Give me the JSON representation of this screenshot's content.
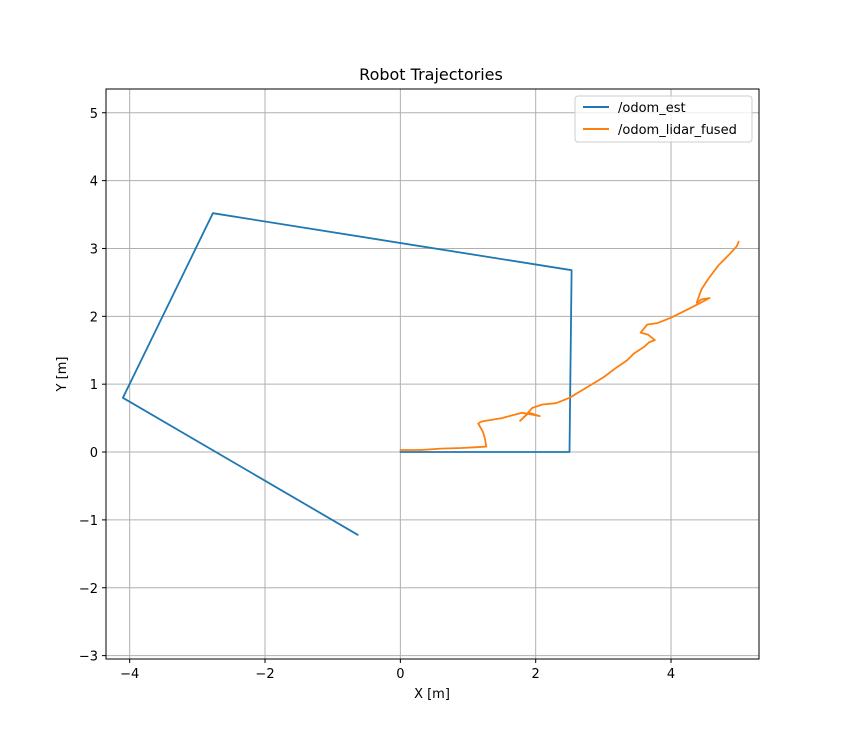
{
  "chart_data": {
    "type": "line",
    "title": "Robot Trajectories",
    "xlabel": "X [m]",
    "ylabel": "Y [m]",
    "xlim": [
      -4.35,
      5.3
    ],
    "ylim": [
      -3.05,
      5.35
    ],
    "xticks": [
      -4,
      -2,
      0,
      2,
      4
    ],
    "yticks": [
      -3,
      -2,
      -1,
      0,
      1,
      2,
      3,
      4,
      5
    ],
    "xtick_labels": [
      "−4",
      "−2",
      "0",
      "2",
      "4"
    ],
    "ytick_labels": [
      "−3",
      "−2",
      "−1",
      "0",
      "1",
      "2",
      "3",
      "4",
      "5"
    ],
    "grid": true,
    "legend_position": "top-right",
    "series": [
      {
        "name": "/odom_est",
        "color": "#1f77b4",
        "x": [
          0.0,
          2.5,
          2.53,
          -2.77,
          -4.1,
          -0.63
        ],
        "y": [
          0.0,
          0.0,
          2.68,
          3.52,
          0.8,
          -1.22
        ]
      },
      {
        "name": "/odom_lidar_fused",
        "color": "#ff7f0e",
        "x": [
          0.0,
          0.3,
          0.6,
          0.9,
          1.1,
          1.27,
          1.25,
          1.22,
          1.15,
          1.2,
          1.5,
          1.8,
          2.06,
          1.9,
          1.77,
          1.83,
          1.95,
          2.1,
          2.3,
          2.5,
          2.75,
          3.0,
          3.2,
          3.35,
          3.45,
          3.6,
          3.68,
          3.76,
          3.66,
          3.55,
          3.65,
          3.8,
          4.0,
          4.2,
          4.4,
          4.57,
          4.45,
          4.38,
          4.45,
          4.55,
          4.7,
          4.85,
          4.97,
          5.0
        ],
        "y": [
          0.03,
          0.03,
          0.05,
          0.06,
          0.07,
          0.08,
          0.2,
          0.3,
          0.42,
          0.45,
          0.5,
          0.58,
          0.53,
          0.58,
          0.46,
          0.52,
          0.65,
          0.7,
          0.72,
          0.8,
          0.95,
          1.1,
          1.25,
          1.35,
          1.45,
          1.55,
          1.62,
          1.65,
          1.73,
          1.76,
          1.88,
          1.9,
          1.98,
          2.08,
          2.18,
          2.27,
          2.25,
          2.2,
          2.4,
          2.55,
          2.75,
          2.9,
          3.03,
          3.1
        ]
      }
    ]
  }
}
